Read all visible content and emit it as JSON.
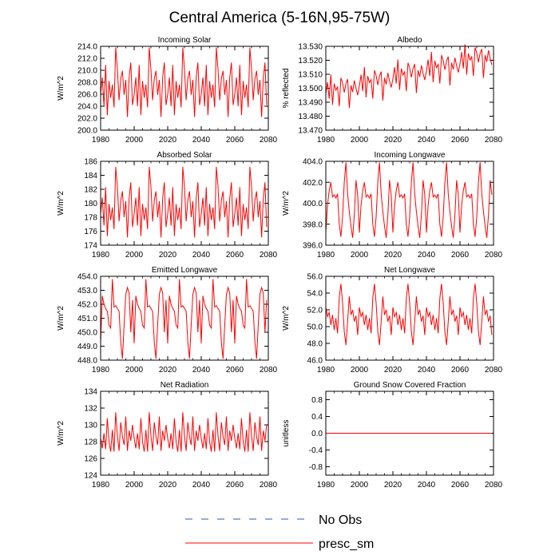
{
  "figure": {
    "title": "Central America (5-16N,95-75W)"
  },
  "legend": {
    "entries": [
      {
        "label": "No Obs",
        "style": "dashed",
        "color": "#3a4fb0"
      },
      {
        "label": "presc_sm",
        "style": "solid",
        "color": "#ff0000"
      }
    ]
  },
  "chart_data": [
    {
      "type": "line",
      "title": "Incoming Solar",
      "ylabel": "W/m^2",
      "xlim": [
        1980,
        2080
      ],
      "xticks": [
        1980,
        2000,
        2020,
        2040,
        2060,
        2080
      ],
      "ylim": [
        200,
        214
      ],
      "yticks": [
        "200.0",
        "202.0",
        "204.0",
        "206.0",
        "208.0",
        "210.0",
        "212.0",
        "214.0"
      ],
      "series": [
        {
          "name": "presc_sm",
          "color": "#ff0000",
          "x_start": 1980,
          "x_step": 1,
          "pattern": [
            206.0,
            208.8,
            204.0,
            210.9,
            202.5,
            208.2,
            205.4,
            207.6,
            203.8,
            213.8,
            210.2,
            205.0,
            208.6,
            209.9,
            205.9,
            208.4,
            202.2,
            208.8,
            211.3,
            204.2
          ],
          "repeat": 5
        }
      ]
    },
    {
      "type": "line",
      "title": "Albedo",
      "ylabel": "% reflected",
      "xlim": [
        1980,
        2080
      ],
      "xticks": [
        1980,
        2000,
        2020,
        2040,
        2060,
        2080
      ],
      "ylim": [
        13.47,
        13.53
      ],
      "yticks": [
        "13.470",
        "13.480",
        "13.490",
        "13.500",
        "13.510",
        "13.520",
        "13.530"
      ],
      "series": [
        {
          "name": "presc_sm",
          "color": "#ff0000",
          "x_start": 1980,
          "x_step": 1,
          "trend_per_year": 0.00027,
          "pattern": [
            13.496,
            13.504,
            13.492,
            13.509,
            13.487,
            13.502,
            13.497,
            13.499,
            13.485,
            13.505,
            13.501,
            13.494,
            13.5,
            13.503,
            13.482,
            13.498,
            13.493,
            13.501,
            13.495,
            13.49
          ],
          "repeat": 5
        }
      ]
    },
    {
      "type": "line",
      "title": "Absorbed Solar",
      "ylabel": "W/m^2",
      "xlim": [
        1980,
        2080
      ],
      "xticks": [
        1980,
        2000,
        2020,
        2040,
        2060,
        2080
      ],
      "ylim": [
        174,
        186
      ],
      "yticks": [
        "174",
        "176",
        "178",
        "180",
        "182",
        "184",
        "186"
      ],
      "series": [
        {
          "name": "presc_sm",
          "color": "#ff0000",
          "x_start": 1980,
          "x_step": 1,
          "pattern": [
            178.5,
            180.8,
            176.8,
            182.3,
            175.3,
            179.9,
            177.6,
            179.4,
            176.3,
            185.2,
            182.4,
            177.4,
            180.4,
            181.7,
            178.0,
            180.3,
            175.1,
            180.7,
            183.0,
            176.6
          ],
          "repeat": 5
        }
      ]
    },
    {
      "type": "line",
      "title": "Incoming Longwave",
      "ylabel": "W/m^2",
      "xlim": [
        1980,
        2080
      ],
      "xticks": [
        1980,
        2000,
        2020,
        2040,
        2060,
        2080
      ],
      "ylim": [
        396,
        404
      ],
      "yticks": [
        "396.0",
        "398.0",
        "400.0",
        "402.0",
        "404.0"
      ],
      "series": [
        {
          "name": "presc_sm",
          "color": "#ff0000",
          "x_start": 1980,
          "x_step": 1,
          "pattern": [
            397.2,
            399.8,
            401.2,
            402.0,
            400.6,
            400.8,
            400.5,
            400.9,
            398.0,
            396.8,
            398.7,
            402.0,
            403.9,
            400.9,
            399.2,
            397.8,
            396.7,
            398.9,
            402.2,
            400.8
          ],
          "repeat": 5
        }
      ]
    },
    {
      "type": "line",
      "title": "Emitted Longwave",
      "ylabel": "W/m^2",
      "xlim": [
        1980,
        2080
      ],
      "xticks": [
        1980,
        2000,
        2020,
        2040,
        2060,
        2080
      ],
      "ylim": [
        448,
        454
      ],
      "yticks": [
        "448.0",
        "449.0",
        "450.0",
        "451.0",
        "452.0",
        "453.0",
        "454.0"
      ],
      "series": [
        {
          "name": "presc_sm",
          "color": "#ff0000",
          "x_start": 1980,
          "x_step": 1,
          "pattern": [
            449.2,
            452.6,
            452.0,
            451.7,
            451.5,
            450.5,
            450.3,
            453.8,
            451.8,
            451.9,
            451.7,
            451.5,
            449.3,
            448.1,
            450.5,
            452.7,
            453.2,
            452.8,
            450.0,
            452.3
          ],
          "repeat": 5
        }
      ]
    },
    {
      "type": "line",
      "title": "Net Longwave",
      "ylabel": "W/m^2",
      "xlim": [
        1980,
        2080
      ],
      "xticks": [
        1980,
        2000,
        2020,
        2040,
        2060,
        2080
      ],
      "ylim": [
        46,
        56
      ],
      "yticks": [
        "46.0",
        "48.0",
        "50.0",
        "52.0",
        "54.0",
        "56.0"
      ],
      "series": [
        {
          "name": "presc_sm",
          "color": "#ff0000",
          "x_start": 1980,
          "x_step": 1,
          "pattern": [
            52.3,
            51.2,
            51.7,
            50.2,
            51.4,
            49.6,
            51.0,
            49.2,
            53.4,
            55.1,
            52.8,
            49.4,
            47.8,
            50.6,
            53.6,
            51.4,
            52.0,
            50.6,
            51.3,
            49.0
          ],
          "repeat": 5
        }
      ]
    },
    {
      "type": "line",
      "title": "Net Radiation",
      "ylabel": "W/m^2",
      "xlim": [
        1980,
        2080
      ],
      "xticks": [
        1980,
        2000,
        2020,
        2040,
        2060,
        2080
      ],
      "ylim": [
        124,
        134
      ],
      "yticks": [
        "124",
        "126",
        "128",
        "130",
        "132",
        "134"
      ],
      "series": [
        {
          "name": "presc_sm",
          "color": "#ff0000",
          "x_start": 1980,
          "x_step": 1,
          "pattern": [
            128.4,
            127.2,
            129.0,
            127.1,
            130.8,
            128.0,
            126.8,
            129.4,
            126.8,
            131.5,
            128.7,
            126.9,
            130.3,
            128.6,
            127.6,
            131.0,
            126.9,
            129.3,
            128.1,
            130.0
          ],
          "repeat": 5
        }
      ]
    },
    {
      "type": "line",
      "title": "Ground Snow Covered Fraction",
      "ylabel": "unitless",
      "xlim": [
        1980,
        2080
      ],
      "xticks": [
        1980,
        2000,
        2020,
        2040,
        2060,
        2080
      ],
      "ylim": [
        -1,
        1
      ],
      "yticks": [
        "-0.8",
        "-0.4",
        "0.0",
        "0.4",
        "0.8"
      ],
      "ytick_values": [
        -0.8,
        -0.4,
        0.0,
        0.4,
        0.8
      ],
      "series": [
        {
          "name": "presc_sm",
          "color": "#ff0000",
          "x_start": 1980,
          "x_step": 1,
          "constant": 0.0,
          "count": 100
        }
      ]
    }
  ]
}
